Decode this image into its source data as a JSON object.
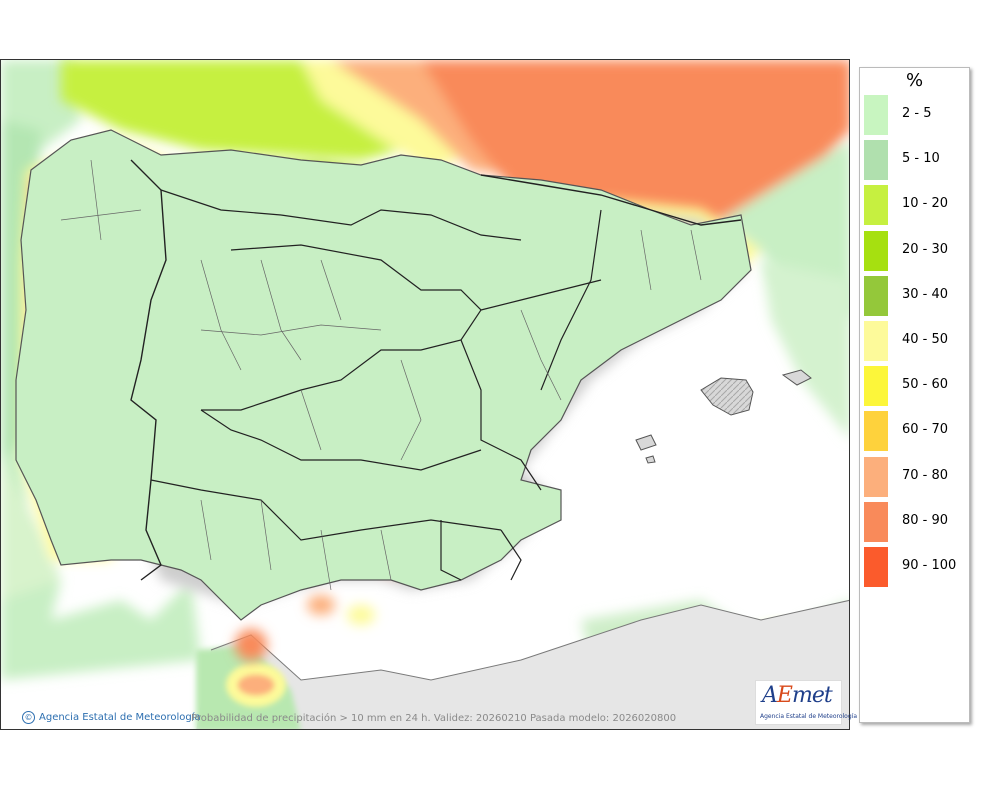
{
  "map": {
    "caption": "Probabilidad de precipitación > 10 mm en 24 h. Validez: 20260210 Pasada modelo: 2026020800",
    "credit": "Agencia Estatal de Meteorología",
    "copyright_symbol": "©",
    "logo_wordmark_a": "A",
    "logo_wordmark_e": "E",
    "logo_wordmark_rest": "met",
    "logo_subtitle": "Agencia Estatal de Meteorología"
  },
  "legend": {
    "unit": "%",
    "classes": [
      {
        "label": "2 - 5",
        "color": "#c8f5c0"
      },
      {
        "label": "5 - 10",
        "color": "#b0e0ae"
      },
      {
        "label": "10 - 20",
        "color": "#c6f040"
      },
      {
        "label": "20 - 30",
        "color": "#a6e010"
      },
      {
        "label": "30 - 40",
        "color": "#94c83a"
      },
      {
        "label": "40 - 50",
        "color": "#fdfa9a"
      },
      {
        "label": "50 - 60",
        "color": "#fcf63a"
      },
      {
        "label": "60 - 70",
        "color": "#fed23c"
      },
      {
        "label": "70 - 80",
        "color": "#fcaf7c"
      },
      {
        "label": "80 - 90",
        "color": "#f98a5a"
      },
      {
        "label": "90 - 100",
        "color": "#fb5b2c"
      }
    ]
  }
}
